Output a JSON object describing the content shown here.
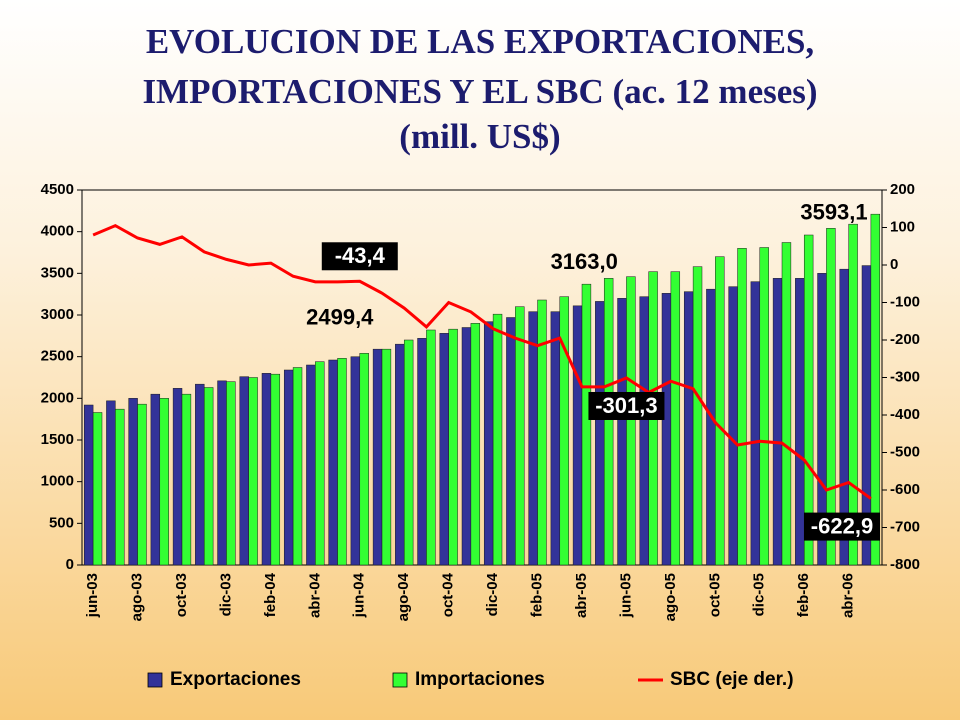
{
  "chart_data": {
    "type": "bar-line",
    "title": [
      "EVOLUCION DE LAS EXPORTACIONES,",
      "IMPORTACIONES Y EL SBC (ac. 12 meses)",
      "(mill. US$)"
    ],
    "categories": [
      "jun-03",
      null,
      "ago-03",
      null,
      "oct-03",
      null,
      "dic-03",
      null,
      "feb-04",
      null,
      "abr-04",
      null,
      "jun-04",
      null,
      "ago-04",
      null,
      "oct-04",
      null,
      "dic-04",
      null,
      "feb-05",
      null,
      "abr-05",
      null,
      "jun-05",
      null,
      "ago-05",
      null,
      "oct-05",
      null,
      "dic-05",
      null,
      "feb-06",
      null,
      "abr-06",
      null
    ],
    "series": [
      {
        "name": "Exportaciones",
        "color": "#333399",
        "kind": "bar",
        "values": [
          1920,
          1970,
          2000,
          2050,
          2120,
          2170,
          2210,
          2260,
          2300,
          2340,
          2400,
          2460,
          2499.4,
          2590,
          2650,
          2720,
          2780,
          2850,
          2920,
          2970,
          3040,
          3040,
          3110,
          3163.0,
          3200,
          3220,
          3260,
          3280,
          3310,
          3340,
          3400,
          3440,
          3440,
          3500,
          3550,
          3593.1
        ],
        "value_labels": [
          null,
          null,
          null,
          null,
          null,
          null,
          null,
          null,
          null,
          null,
          null,
          null,
          "2499,4",
          null,
          null,
          null,
          null,
          null,
          null,
          null,
          null,
          null,
          null,
          "3163,0",
          null,
          null,
          null,
          null,
          null,
          null,
          null,
          null,
          null,
          null,
          null,
          "3593,1"
        ]
      },
      {
        "name": "Importaciones",
        "color": "#33ff33",
        "kind": "bar",
        "values": [
          1830,
          1870,
          1930,
          2000,
          2050,
          2130,
          2200,
          2250,
          2290,
          2370,
          2440,
          2480,
          2540,
          2590,
          2700,
          2820,
          2830,
          2900,
          3010,
          3100,
          3180,
          3220,
          3370,
          3440,
          3460,
          3520,
          3520,
          3580,
          3700,
          3800,
          3810,
          3870,
          3960,
          4040,
          4090,
          4210
        ]
      },
      {
        "name": "SBC (eje der.)",
        "color": "#ff0000",
        "kind": "line",
        "axis": "y2",
        "values": [
          80,
          105,
          72,
          55,
          75,
          35,
          15,
          0,
          5,
          -30,
          -45,
          -45,
          -43.4,
          -75,
          -115,
          -165,
          -100,
          -125,
          -170,
          -195,
          -215,
          -195,
          -325,
          -325,
          -301.3,
          -340,
          -310,
          -330,
          -420,
          -480,
          -470,
          -475,
          -520,
          -600,
          -580,
          -622.9
        ],
        "value_labels": [
          null,
          null,
          null,
          null,
          null,
          null,
          null,
          null,
          null,
          null,
          null,
          null,
          "-43,4",
          null,
          null,
          null,
          null,
          null,
          null,
          null,
          null,
          null,
          null,
          null,
          "-301,3",
          null,
          null,
          null,
          null,
          null,
          null,
          null,
          null,
          null,
          null,
          "-622,9"
        ]
      }
    ],
    "ylim": [
      0,
      4500
    ],
    "yticks": [
      0,
      500,
      1000,
      1500,
      2000,
      2500,
      3000,
      3500,
      4000,
      4500
    ],
    "y2lim": [
      -800,
      200
    ],
    "y2ticks": [
      -800,
      -700,
      -600,
      -500,
      -400,
      -300,
      -200,
      -100,
      0,
      100,
      200
    ],
    "legend": "bottom"
  }
}
